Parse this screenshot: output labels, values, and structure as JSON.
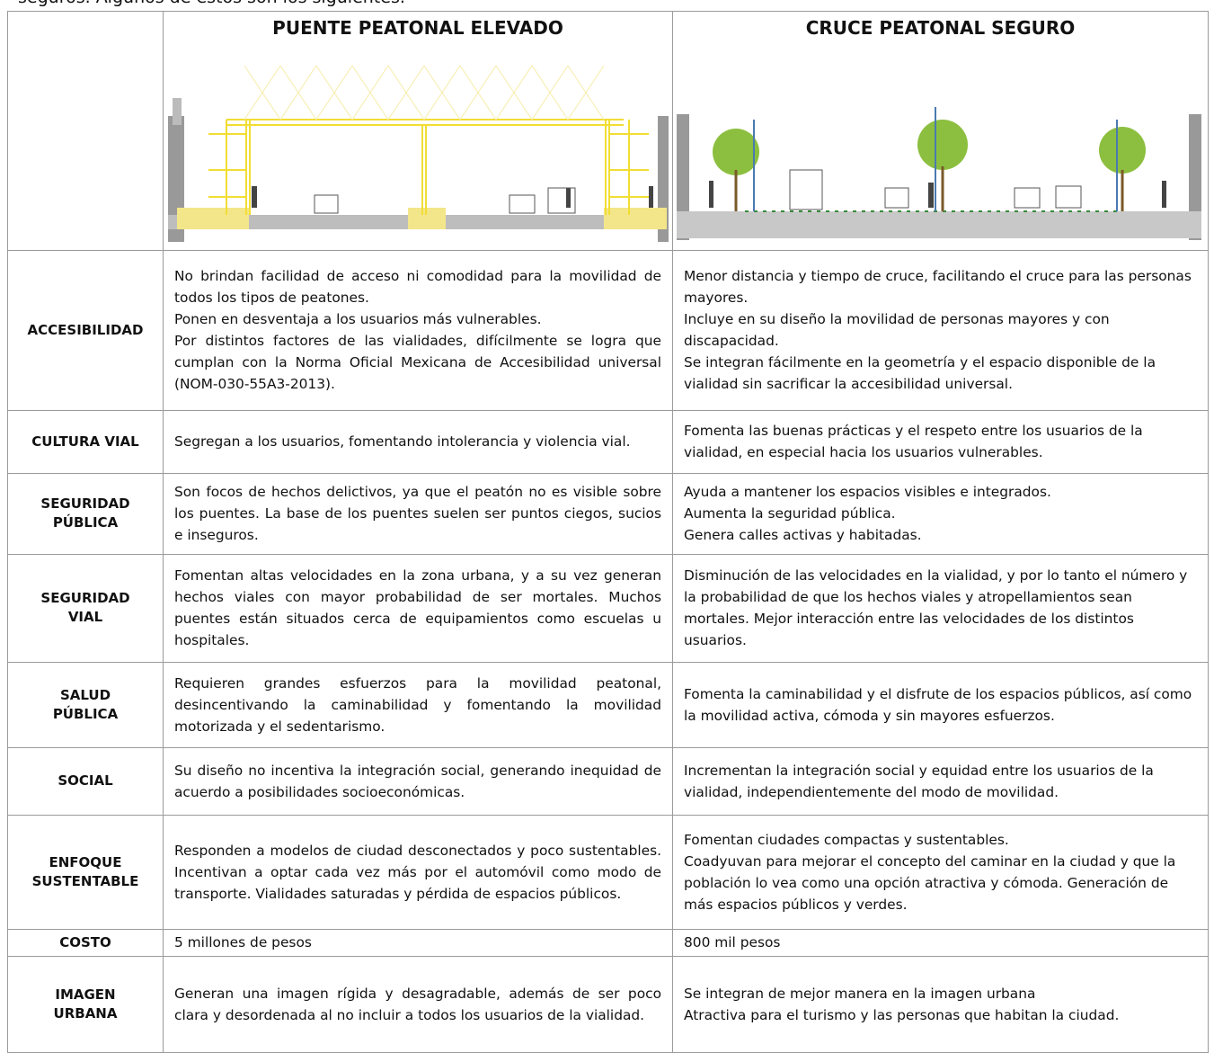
{
  "intro": "seguros. Algunos de estos son los siguientes.",
  "table": {
    "headers": [
      "PUENTE PEATONAL ELEVADO",
      "CRUCE PEATONAL SEGURO"
    ],
    "rows": [
      {
        "label": [
          "ACCESIBILIDAD"
        ],
        "bridge": [
          "No brindan facilidad de acceso ni comodidad para la movilidad de todos los tipos de peatones.",
          "Ponen en desventaja a los usuarios más vulnerables.",
          "Por distintos factores de las vialidades, difícilmente se logra que cumplan con la Norma Oficial Mexicana de Accesibilidad universal (NOM-030-55A3-2013)."
        ],
        "crossing": [
          "Menor distancia y tiempo de cruce, facilitando el cruce para las personas mayores.",
          "Incluye en su diseño la movilidad de personas mayores y con discapacidad.",
          "Se integran fácilmente en la geometría y el espacio disponible de la vialidad sin sacrificar la accesibilidad universal."
        ]
      },
      {
        "label": [
          "CULTURA VIAL"
        ],
        "bridge": [
          "Segregan a los usuarios, fomentando intolerancia y violencia vial."
        ],
        "crossing": [
          "Fomenta las buenas prácticas y el respeto entre los usuarios de la vialidad, en especial hacia los usuarios vulnerables."
        ]
      },
      {
        "label": [
          "SEGURIDAD",
          "PÚBLICA"
        ],
        "bridge": [
          "Son focos de hechos delictivos, ya que el peatón no es visible sobre los puentes. La base de los puentes suelen ser puntos ciegos, sucios e inseguros."
        ],
        "crossing": [
          "Ayuda a mantener los espacios visibles e integrados.",
          "Aumenta la seguridad pública.",
          "Genera calles activas y habitadas."
        ]
      },
      {
        "label": [
          "SEGURIDAD",
          "VIAL"
        ],
        "bridge": [
          "Fomentan altas velocidades en la zona urbana, y a su vez generan hechos viales con mayor probabilidad de ser mortales. Muchos puentes están situados cerca de equipamientos como escuelas u hospitales."
        ],
        "crossing": [
          "Disminución de las velocidades en la vialidad, y por lo tanto el número y la probabilidad de que los hechos viales y atropellamientos sean mortales. Mejor interacción entre las velocidades de los distintos usuarios."
        ]
      },
      {
        "label": [
          "SALUD",
          "PÚBLICA"
        ],
        "bridge": [
          "Requieren grandes esfuerzos para la movilidad peatonal, desincentivando la caminabilidad y fomentando la movilidad motorizada y el sedentarismo."
        ],
        "crossing": [
          "Fomenta la caminabilidad y el disfrute de los espacios públicos, así como la movilidad activa, cómoda y sin mayores esfuerzos."
        ]
      },
      {
        "label": [
          "SOCIAL"
        ],
        "bridge": [
          "Su diseño no incentiva la integración social, generando inequidad de acuerdo a posibilidades socioeconómicas."
        ],
        "crossing": [
          "Incrementan la integración social y equidad entre los usuarios de la vialidad, independientemente del modo de movilidad."
        ]
      },
      {
        "label": [
          "ENFOQUE",
          "SUSTENTABLE"
        ],
        "bridge": [
          "Responden a modelos de ciudad desconectados y poco sustentables. Incentivan a optar cada vez más por el automóvil como modo de transporte. Vialidades saturadas y pérdida de espacios públicos."
        ],
        "crossing": [
          "Fomentan ciudades compactas y sustentables.",
          "Coadyuvan para mejorar el concepto del caminar en la ciudad y que la población lo vea como una opción atractiva y cómoda. Generación de más espacios públicos y verdes."
        ]
      },
      {
        "label": [
          "COSTO"
        ],
        "bridge": [
          "5 millones de pesos"
        ],
        "crossing": [
          "800 mil pesos"
        ]
      },
      {
        "label": [
          "IMAGEN",
          "URBANA"
        ],
        "bridge": [
          "Generan una imagen rígida y desagradable, además de ser poco clara y desordenada al no incluir a todos los usuarios de la vialidad."
        ],
        "crossing": [
          "Se integran de mejor manera en la imagen urbana",
          "Atractiva para el turismo y las personas que habitan la ciudad."
        ]
      }
    ]
  }
}
